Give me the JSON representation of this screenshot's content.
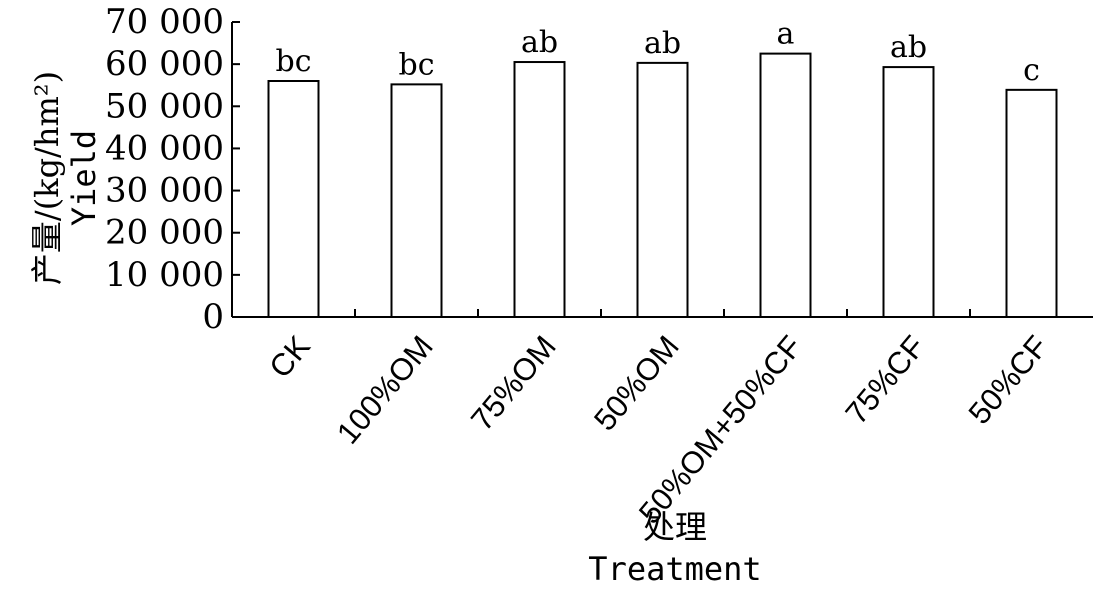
{
  "chart_data": {
    "type": "bar",
    "categories": [
      "CK",
      "100%OM",
      "75%OM",
      "50%OM",
      "50%OM+50%CF",
      "75%CF",
      "50%CF"
    ],
    "values": [
      56000,
      55200,
      60500,
      60300,
      62500,
      59300,
      53900
    ],
    "significance": [
      "bc",
      "bc",
      "ab",
      "ab",
      "a",
      "ab",
      "c"
    ],
    "ylim": [
      0,
      70000
    ],
    "yticks": [
      0,
      10000,
      20000,
      30000,
      40000,
      50000,
      60000,
      70000
    ],
    "ytick_labels": [
      "0",
      "10 000",
      "20 000",
      "30 000",
      "40 000",
      "50 000",
      "60 000",
      "70 000"
    ],
    "ylabel_cn": "产量/(kg/hm²)",
    "ylabel_en": "Yield",
    "xlabel_cn": "处理",
    "xlabel_en": "Treatment",
    "grid": false,
    "bar_fill": "#ffffff",
    "bar_stroke": "#000000"
  }
}
